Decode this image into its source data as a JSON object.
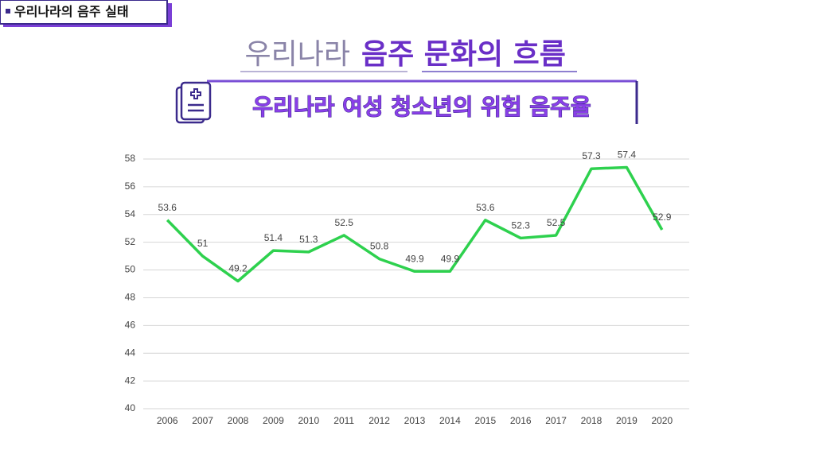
{
  "slide": {
    "tag": "우리나라의 음주 실태",
    "title_light": "우리나라",
    "title_bold": "음주 문화의 흐름",
    "subtitle": "우리나라 여성 청소년의 위험 음주율"
  },
  "chart_data": {
    "type": "line",
    "categories": [
      "2006",
      "2007",
      "2008",
      "2009",
      "2010",
      "2011",
      "2012",
      "2013",
      "2014",
      "2015",
      "2016",
      "2017",
      "2018",
      "2019",
      "2020"
    ],
    "values": [
      53.6,
      51,
      49.2,
      51.4,
      51.3,
      52.5,
      50.8,
      49.9,
      49.9,
      53.6,
      52.3,
      52.5,
      57.3,
      57.4,
      52.9
    ],
    "color": "#2ed14e",
    "ylim": [
      40,
      58
    ],
    "yticks": [
      40,
      42,
      44,
      46,
      48,
      50,
      52,
      54,
      56,
      58
    ],
    "grid": true
  }
}
